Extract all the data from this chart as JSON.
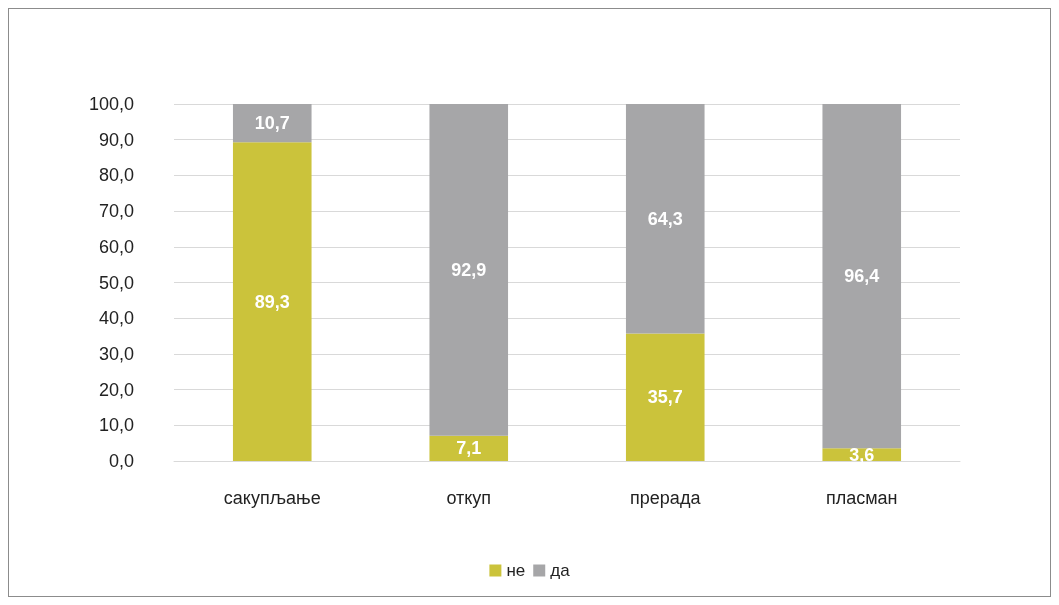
{
  "chart_data": {
    "type": "bar",
    "stacked": true,
    "categories": [
      "сакупљање",
      "откуп",
      "прерада",
      "пласман"
    ],
    "series": [
      {
        "name": "не",
        "color": "#cbc33b",
        "values": [
          89.3,
          7.1,
          35.7,
          3.6
        ],
        "value_labels": [
          "89,3",
          "7,1",
          "35,7",
          "3,6"
        ]
      },
      {
        "name": "да",
        "color": "#a6a6a8",
        "values": [
          10.7,
          92.9,
          64.3,
          96.4
        ],
        "value_labels": [
          "10,7",
          "92,9",
          "64,3",
          "96,4"
        ]
      }
    ],
    "ylim": [
      0,
      100
    ],
    "yticks": [
      {
        "value": 0,
        "label": "0,0"
      },
      {
        "value": 10,
        "label": "10,0"
      },
      {
        "value": 20,
        "label": "20,0"
      },
      {
        "value": 30,
        "label": "30,0"
      },
      {
        "value": 40,
        "label": "40,0"
      },
      {
        "value": 50,
        "label": "50,0"
      },
      {
        "value": 60,
        "label": "60,0"
      },
      {
        "value": 70,
        "label": "70,0"
      },
      {
        "value": 80,
        "label": "80,0"
      },
      {
        "value": 90,
        "label": "90,0"
      },
      {
        "value": 100,
        "label": "100,0"
      }
    ],
    "grid": "y",
    "legend": "bottom"
  }
}
